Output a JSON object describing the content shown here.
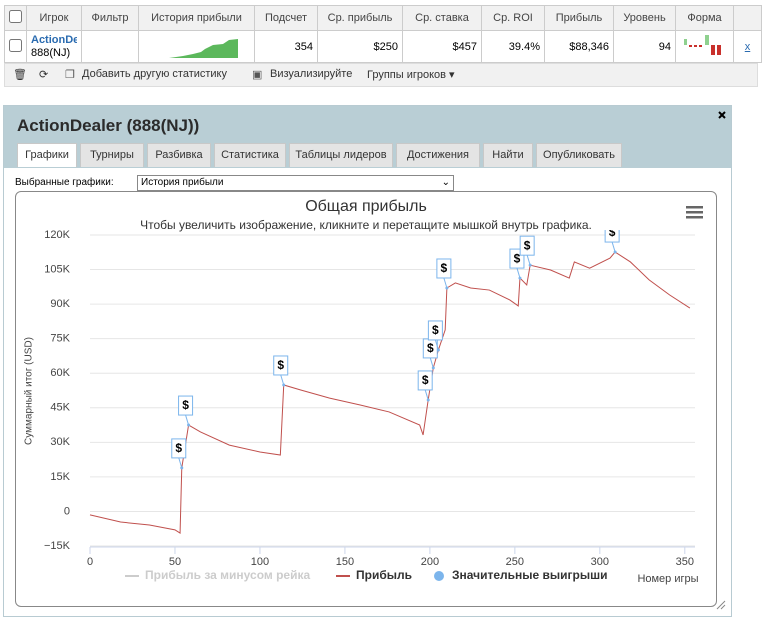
{
  "table": {
    "headers": [
      "Игрок",
      "Фильтр",
      "История прибыли",
      "Подсчет",
      "Ср. прибыль",
      "Ср. ставка",
      "Ср. ROI",
      "Прибыль",
      "Уровень",
      "Форма"
    ],
    "row": {
      "player": "ActionDealer",
      "site": "888(NJ)",
      "count": "354",
      "avg_profit": "$250",
      "avg_stake": "$457",
      "roi": "39.4%",
      "profit": "$88,346",
      "level": "94",
      "remove": "x"
    }
  },
  "toolbar": {
    "add": "Добавить другую статистику",
    "visualize": "Визуализируйте",
    "groups": "Группы игроков"
  },
  "panel": {
    "title": "ActionDealer (888(NJ))",
    "tabs": [
      "Графики",
      "Турниры",
      "Разбивка",
      "Статистика",
      "Таблицы лидеров",
      "Достижения",
      "Найти",
      "Опубликовать"
    ],
    "select_label": "Выбранные графики:",
    "select_value": "История прибыли"
  },
  "chart_data": {
    "type": "line",
    "title": "Общая прибыль",
    "subtitle": "Чтобы увеличить изображение, кликните и перетащите мышкой внутрь графика.",
    "y_label": "Суммарный итог (USD)",
    "x_label": "Номер игры",
    "flag_label": "$",
    "xlim": [
      0,
      356
    ],
    "xticks": [
      0,
      50,
      100,
      150,
      200,
      250,
      300,
      350
    ],
    "ylim": [
      -15000,
      120000
    ],
    "yticks": [
      {
        "value": -15000,
        "label": "−15K"
      },
      0,
      {
        "value": 15000,
        "label": "15K"
      },
      {
        "value": 30000,
        "label": "30K"
      },
      {
        "value": 45000,
        "label": "45K"
      },
      {
        "value": 60000,
        "label": "60K"
      },
      {
        "value": 75000,
        "label": "75K"
      },
      {
        "value": 90000,
        "label": "90K"
      },
      {
        "value": 105000,
        "label": "105K"
      },
      {
        "value": 120000,
        "label": "120K"
      }
    ],
    "grid": true,
    "series": [
      {
        "name": "Прибыль за минусом рейка",
        "color": "#cccccc",
        "visible": false
      },
      {
        "name": "Прибыль",
        "color": "#c0504d",
        "x": [
          0,
          18,
          35,
          50,
          53,
          54,
          58,
          65,
          82,
          100,
          112,
          114,
          124,
          141,
          159,
          176,
          194,
          196,
          199,
          202,
          205,
          209,
          210,
          215,
          224,
          235,
          247,
          252,
          253,
          257,
          259,
          271,
          282,
          285,
          294,
          306,
          309,
          318,
          329,
          341,
          353
        ],
        "values": [
          -1500,
          -4600,
          -5900,
          -8000,
          -9400,
          18900,
          37500,
          34500,
          28800,
          25800,
          24500,
          54900,
          52700,
          49200,
          46200,
          43200,
          37500,
          33200,
          48400,
          62300,
          70100,
          78800,
          97000,
          99200,
          97000,
          96100,
          91800,
          89200,
          101300,
          98300,
          106900,
          104800,
          101300,
          108300,
          105600,
          110000,
          112600,
          108300,
          100500,
          94000,
          88300
        ]
      },
      {
        "name": "Значительные выигрыши",
        "color": "#7cb5ec",
        "type": "scatter",
        "x": [
          54,
          58,
          114,
          199,
          202,
          205,
          210,
          253,
          259,
          309
        ],
        "values": [
          18900,
          37500,
          54900,
          48400,
          62300,
          70100,
          97000,
          101300,
          106900,
          112600
        ]
      }
    ]
  }
}
